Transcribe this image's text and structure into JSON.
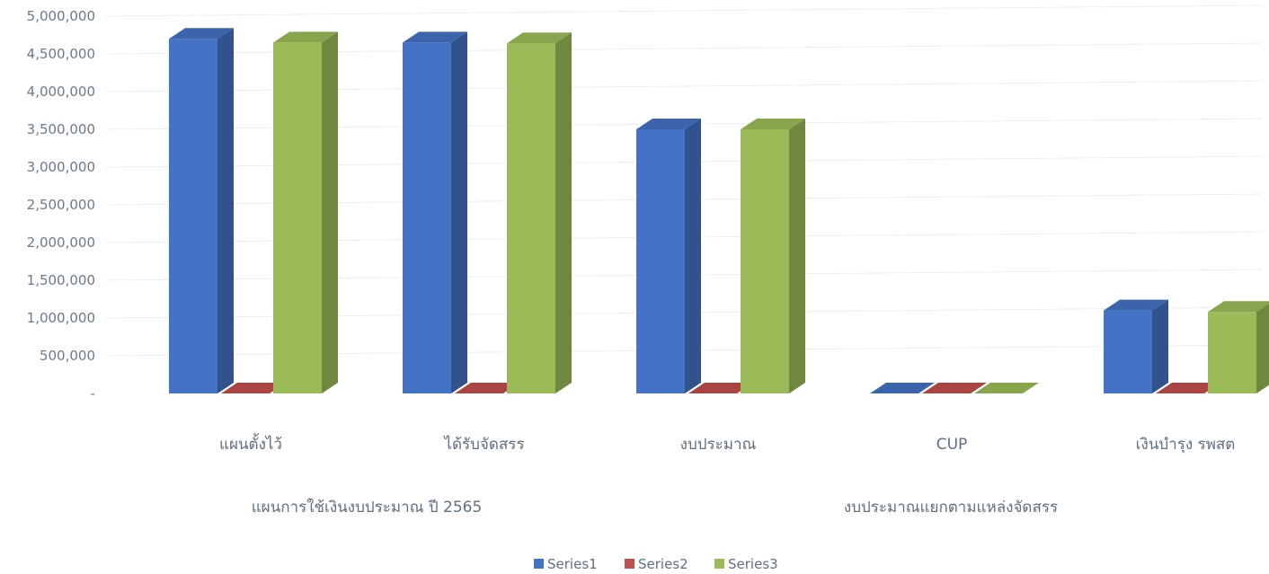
{
  "chart_data": {
    "type": "bar",
    "style": "3d-clustered-column",
    "categories": [
      "แผนตั้งไว้",
      "ได้รับจัดสรร",
      "งบประมาณ",
      "CUP",
      "เงินบำรุง รพสต"
    ],
    "groups": [
      {
        "label": "แผนการใช้เงินงบประมาณ ปี 2565",
        "categories": [
          0,
          1
        ]
      },
      {
        "label": "งบประมาณแยกตามแหล่งจัดสรร",
        "categories": [
          2,
          3,
          4
        ]
      }
    ],
    "series": [
      {
        "name": "Series1",
        "color": "#4472c4",
        "values": [
          4700000,
          4650000,
          3500000,
          0,
          1100000
        ]
      },
      {
        "name": "Series2",
        "color": "#c0504d",
        "values": [
          0,
          0,
          0,
          0,
          0
        ]
      },
      {
        "name": "Series3",
        "color": "#9bbb59",
        "values": [
          4650000,
          4640000,
          3500000,
          0,
          1080000
        ]
      }
    ],
    "y_ticks": [
      "-",
      "500,000",
      "1,000,000",
      "1,500,000",
      "2,000,000",
      "2,500,000",
      "3,000,000",
      "3,500,000",
      "4,000,000",
      "4,500,000",
      "5,000,000"
    ],
    "ylim": [
      0,
      5000000
    ],
    "grid": true,
    "legend_position": "bottom"
  }
}
